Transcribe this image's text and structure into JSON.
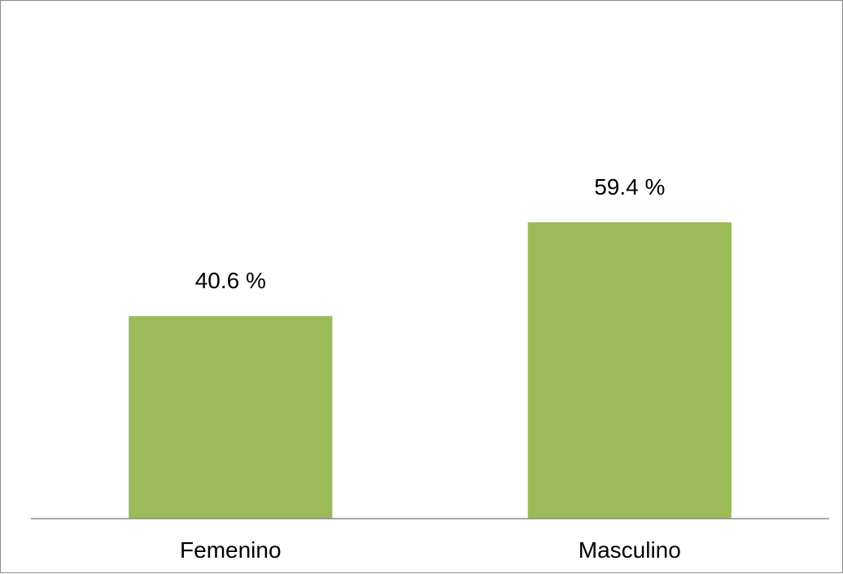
{
  "chart_data": {
    "type": "bar",
    "categories": [
      "Femenino",
      "Masculino"
    ],
    "values": [
      40.6,
      59.4
    ],
    "data_labels": [
      "40.6 %",
      "59.4 %"
    ],
    "title": "",
    "xlabel": "",
    "ylabel": "",
    "ylim": [
      0,
      70
    ],
    "grid": false,
    "legend": "none",
    "colors": {
      "bar": "#9bbb59",
      "axis": "#8c8c8c",
      "frame": "#8c8c8c",
      "text": "#000000"
    }
  }
}
